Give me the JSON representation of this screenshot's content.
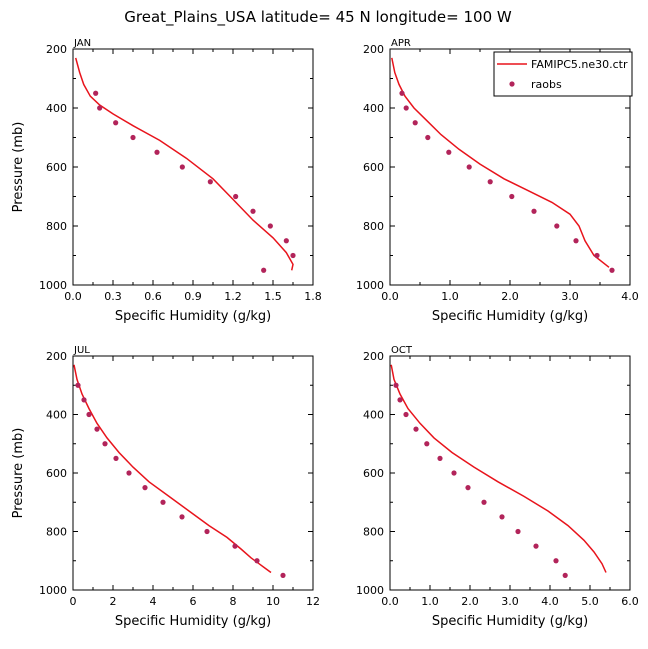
{
  "figure_title": "Great_Plains_USA   latitude= 45 N longitude= 100 W",
  "legend": {
    "model_label": "FAMIPC5.ne30.ctr",
    "obs_label": "raobs"
  },
  "colors": {
    "model": "#e8141c",
    "obs": "#b2245a",
    "axis": "#000000"
  },
  "chart_data": [
    {
      "type": "line",
      "panel": "JAN",
      "xlabel": "Specific Humidity (g/kg)",
      "ylabel": "Pressure (mb)",
      "xlim": [
        0,
        1.8
      ],
      "xticks": [
        "0.0",
        "0.3",
        "0.6",
        "0.9",
        "1.2",
        "1.5",
        "1.8"
      ],
      "ylim": [
        1000,
        200
      ],
      "yticks": [
        "200",
        "400",
        "600",
        "800",
        "1000"
      ],
      "model": {
        "name": "FAMIPC5.ne30.ctr",
        "q": [
          0.02,
          0.05,
          0.08,
          0.13,
          0.2,
          0.3,
          0.45,
          0.65,
          0.85,
          1.05,
          1.2,
          1.35,
          1.5,
          1.6,
          1.65,
          1.64
        ],
        "p": [
          230,
          280,
          320,
          360,
          390,
          420,
          460,
          510,
          570,
          640,
          710,
          780,
          840,
          890,
          930,
          950
        ]
      },
      "obs": {
        "name": "raobs",
        "q": [
          0.17,
          0.2,
          0.32,
          0.45,
          0.63,
          0.82,
          1.03,
          1.22,
          1.35,
          1.48,
          1.6,
          1.65,
          1.43
        ],
        "p": [
          350,
          400,
          450,
          500,
          550,
          600,
          650,
          700,
          750,
          800,
          850,
          900,
          950
        ]
      }
    },
    {
      "type": "line",
      "panel": "APR",
      "xlabel": "Specific Humidity (g/kg)",
      "ylabel": "Pressure (mb)",
      "xlim": [
        0,
        4.0
      ],
      "xticks": [
        "0.0",
        "1.0",
        "2.0",
        "3.0",
        "4.0"
      ],
      "ylim": [
        1000,
        200
      ],
      "yticks": [
        "200",
        "400",
        "600",
        "800",
        "1000"
      ],
      "model": {
        "name": "FAMIPC5.ne30.ctr",
        "q": [
          0.03,
          0.08,
          0.15,
          0.25,
          0.4,
          0.6,
          0.85,
          1.15,
          1.5,
          1.9,
          2.3,
          2.7,
          3.0,
          3.15,
          3.25,
          3.4,
          3.65
        ],
        "p": [
          230,
          280,
          320,
          360,
          400,
          440,
          490,
          540,
          590,
          640,
          680,
          720,
          760,
          800,
          850,
          900,
          940
        ]
      },
      "obs": {
        "name": "raobs",
        "q": [
          0.2,
          0.27,
          0.42,
          0.63,
          0.98,
          1.32,
          1.67,
          2.03,
          2.4,
          2.78,
          3.1,
          3.45,
          3.7
        ],
        "p": [
          350,
          400,
          450,
          500,
          550,
          600,
          650,
          700,
          750,
          800,
          850,
          900,
          950
        ]
      }
    },
    {
      "type": "line",
      "panel": "JUL",
      "xlabel": "Specific Humidity (g/kg)",
      "ylabel": "Pressure (mb)",
      "xlim": [
        0,
        12
      ],
      "xticks": [
        "0",
        "2",
        "4",
        "6",
        "8",
        "10",
        "12"
      ],
      "ylim": [
        1000,
        200
      ],
      "yticks": [
        "200",
        "400",
        "600",
        "800",
        "1000"
      ],
      "model": {
        "name": "FAMIPC5.ne30.ctr",
        "q": [
          0.05,
          0.2,
          0.45,
          0.8,
          1.2,
          1.7,
          2.3,
          3.0,
          3.8,
          4.8,
          5.8,
          6.8,
          7.7,
          8.4,
          8.9,
          9.3,
          9.6,
          9.9
        ],
        "p": [
          230,
          280,
          330,
          380,
          430,
          480,
          530,
          580,
          630,
          680,
          730,
          780,
          820,
          860,
          890,
          910,
          925,
          940
        ]
      },
      "obs": {
        "name": "raobs",
        "q": [
          0.25,
          0.55,
          0.8,
          1.2,
          1.6,
          2.15,
          2.8,
          3.6,
          4.5,
          5.45,
          6.7,
          8.1,
          9.2,
          10.5
        ],
        "p": [
          300,
          350,
          400,
          450,
          500,
          550,
          600,
          650,
          700,
          750,
          800,
          850,
          900,
          950
        ]
      }
    },
    {
      "type": "line",
      "panel": "OCT",
      "xlabel": "Specific Humidity (g/kg)",
      "ylabel": "Pressure (mb)",
      "xlim": [
        0,
        6.0
      ],
      "xticks": [
        "0.0",
        "1.0",
        "2.0",
        "3.0",
        "4.0",
        "5.0",
        "6.0"
      ],
      "ylim": [
        1000,
        200
      ],
      "yticks": [
        "200",
        "400",
        "600",
        "800",
        "1000"
      ],
      "model": {
        "name": "FAMIPC5.ne30.ctr",
        "q": [
          0.03,
          0.1,
          0.25,
          0.45,
          0.75,
          1.1,
          1.55,
          2.1,
          2.7,
          3.35,
          3.95,
          4.45,
          4.85,
          5.1,
          5.3,
          5.4
        ],
        "p": [
          230,
          280,
          330,
          380,
          430,
          480,
          530,
          580,
          630,
          680,
          730,
          780,
          830,
          870,
          910,
          940
        ]
      },
      "obs": {
        "name": "raobs",
        "q": [
          0.15,
          0.25,
          0.4,
          0.65,
          0.92,
          1.25,
          1.6,
          1.95,
          2.35,
          2.8,
          3.2,
          3.65,
          4.15,
          4.38
        ],
        "p": [
          300,
          350,
          400,
          450,
          500,
          550,
          600,
          650,
          700,
          750,
          800,
          850,
          900,
          950
        ]
      }
    }
  ]
}
